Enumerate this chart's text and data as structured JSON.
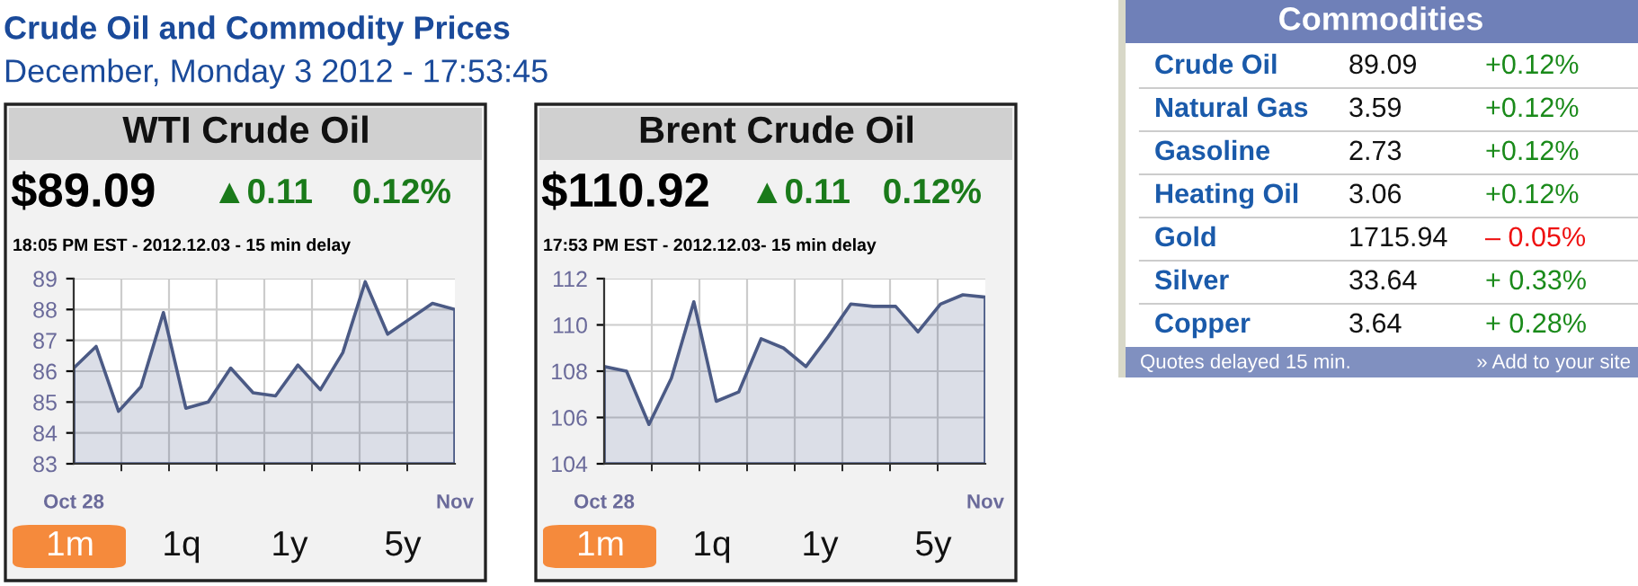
{
  "chart_data": [
    {
      "type": "area",
      "title": "WTI Crude Oil",
      "categories": [
        "Oct 28",
        null,
        null,
        null,
        null,
        null,
        null,
        null,
        null,
        null,
        null,
        null,
        null,
        null,
        null,
        null,
        null,
        "Nov"
      ],
      "series": [
        {
          "color": "#4b5a85",
          "values": [
            86.1,
            86.8,
            84.7,
            85.5,
            87.9,
            84.8,
            85.0,
            86.1,
            85.3,
            85.2,
            86.2,
            85.4,
            86.6,
            88.9,
            87.2,
            87.7,
            88.2,
            88.0
          ]
        }
      ],
      "ylim": [
        83,
        89
      ],
      "yticks": [
        83,
        84,
        85,
        86,
        87,
        88,
        89
      ],
      "grid": true,
      "annotations": [
        "$89.09",
        "▲0.11",
        "0.12%",
        "18:05 PM EST - 2012.12.03 - 15 min delay",
        "1m",
        "1q",
        "1y",
        "5y",
        "Crude Oil and Commodity Prices",
        "December, Monday 3 2012 - 17:53:45"
      ]
    },
    {
      "type": "area",
      "title": "Brent Crude Oil",
      "categories": [
        "Oct 28",
        null,
        null,
        null,
        null,
        null,
        null,
        null,
        null,
        null,
        null,
        null,
        null,
        null,
        null,
        null,
        null,
        "Nov"
      ],
      "series": [
        {
          "color": "#4b5a85",
          "values": [
            108.2,
            108.0,
            105.7,
            107.7,
            111.0,
            106.7,
            107.1,
            109.4,
            109.0,
            108.2,
            109.5,
            110.9,
            110.8,
            110.8,
            109.7,
            110.9,
            111.3,
            111.2
          ]
        }
      ],
      "ylim": [
        104,
        112
      ],
      "yticks": [
        104,
        106,
        108,
        110,
        112
      ],
      "grid": true,
      "annotations": [
        "$110.92",
        "▲0.11",
        "0.12%",
        "17:53 PM EST - 2012.12.03- 15 min delay",
        "1m",
        "1q",
        "1y",
        "5y"
      ]
    },
    {
      "type": "other",
      "title": "Commodities",
      "annotations": [
        "Crude Oil",
        "89.09",
        "+0.12%",
        "Natural Gas",
        "3.59",
        "+0.12%",
        "Gasoline",
        "2.73",
        "+0.12%",
        "Heating Oil",
        "3.06",
        "+0.12%",
        "Gold",
        "1715.94",
        "– 0.05%",
        "Silver",
        "33.64",
        "+ 0.33%",
        "Copper",
        "3.64",
        "+ 0.28%",
        "Quotes delayed 15 min.",
        "» Add to your site"
      ],
      "colors": [
        "#1a5aaa",
        "#111111",
        "#1a8a1a",
        "#1a5aaa",
        "#111111",
        "#1a8a1a",
        "#1a5aaa",
        "#111111",
        "#1a8a1a",
        "#1a5aaa",
        "#111111",
        "#1a8a1a",
        "#1a5aaa",
        "#111111",
        "#ee1111",
        "#1a5aaa",
        "#111111",
        "#1a8a1a",
        "#1a5aaa",
        "#111111",
        "#1a8a1a",
        "#ffffff",
        "#ffffff"
      ]
    }
  ]
}
